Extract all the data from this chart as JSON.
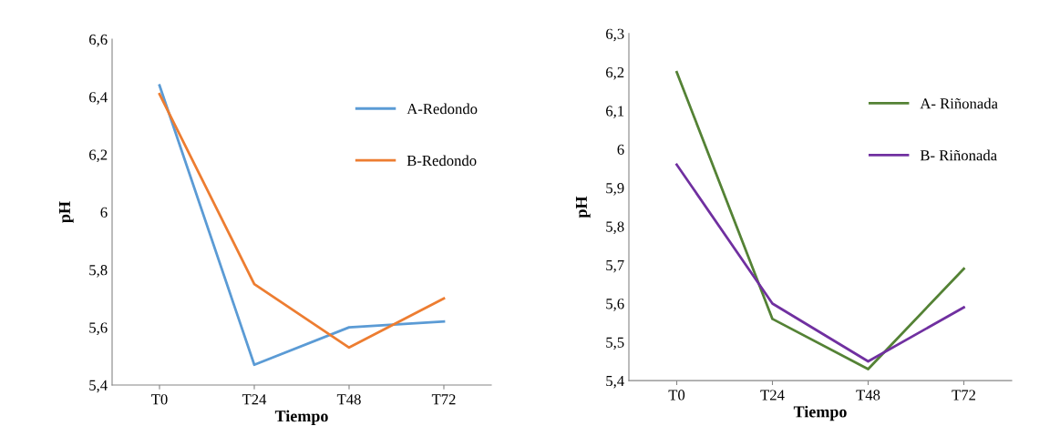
{
  "chart_data": [
    {
      "type": "line",
      "xlabel": "Tiempo",
      "ylabel": "pH",
      "categories": [
        "T0",
        "T24",
        "T48",
        "T72"
      ],
      "ylim": [
        5.4,
        6.6
      ],
      "yticks": [
        {
          "value": 5.4,
          "label": "5,4"
        },
        {
          "value": 5.6,
          "label": "5,6"
        },
        {
          "value": 5.8,
          "label": "5,8"
        },
        {
          "value": 6,
          "label": "6"
        },
        {
          "value": 6.2,
          "label": "6,2"
        },
        {
          "value": 6.4,
          "label": "6,4"
        },
        {
          "value": 6.6,
          "label": "6,6"
        }
      ],
      "grid": false,
      "legend": "right",
      "marker": "none",
      "line_style": "solid",
      "series": [
        {
          "name": "A-Redondo",
          "color": "#5b9bd5",
          "values": [
            6.44,
            5.47,
            5.6,
            5.62
          ]
        },
        {
          "name": "B-Redondo",
          "color": "#ed7d31",
          "values": [
            6.41,
            5.75,
            5.53,
            5.7
          ]
        }
      ]
    },
    {
      "type": "line",
      "xlabel": "Tiempo",
      "ylabel": "pH",
      "categories": [
        "T0",
        "T24",
        "T48",
        "T72"
      ],
      "ylim": [
        5.4,
        6.3
      ],
      "yticks": [
        {
          "value": 5.4,
          "label": "5,4"
        },
        {
          "value": 5.5,
          "label": "5,5"
        },
        {
          "value": 5.6,
          "label": "5,6"
        },
        {
          "value": 5.7,
          "label": "5,7"
        },
        {
          "value": 5.8,
          "label": "5,8"
        },
        {
          "value": 5.9,
          "label": "5,9"
        },
        {
          "value": 6,
          "label": "6"
        },
        {
          "value": 6.1,
          "label": "6,1"
        },
        {
          "value": 6.2,
          "label": "6,2"
        },
        {
          "value": 6.3,
          "label": "6,3"
        }
      ],
      "grid": false,
      "legend": "right",
      "marker": "none",
      "line_style": "solid",
      "series": [
        {
          "name": "A- Riñonada",
          "color": "#548235",
          "values": [
            6.2,
            5.56,
            5.43,
            5.69
          ]
        },
        {
          "name": "B- Riñonada",
          "color": "#7030a0",
          "values": [
            5.96,
            5.6,
            5.45,
            5.59
          ]
        }
      ]
    }
  ]
}
